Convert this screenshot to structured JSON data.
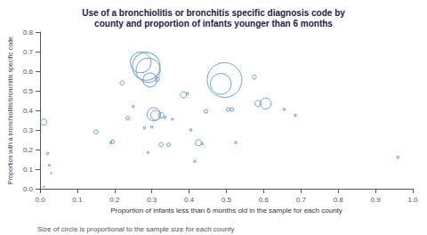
{
  "chart_data": {
    "type": "scatter",
    "title": "Use of a bronchiolitis or bronchitis specific diagnosis code by\ncounty and proportion of infants younger than 6 months",
    "xlabel": "Proportion of infants less than 6 months old in the sample for each county",
    "ylabel": "Proportion with a bronchiolitis/bronchitis specific code",
    "footnote": "Size of circle is proportional to the sample size for each county",
    "xlim": [
      0.0,
      1.0
    ],
    "ylim": [
      0.0,
      0.8
    ],
    "xticks": [
      {
        "value": 0,
        "label": "0.0"
      },
      0.1,
      0.2,
      0.3,
      0.4,
      0.5,
      0.6,
      0.7,
      0.8,
      0.9,
      {
        "value": 1,
        "label": "1.0"
      }
    ],
    "yticks": [
      {
        "value": 0,
        "label": "0.0"
      },
      0.1,
      0.2,
      0.3,
      0.4,
      0.5,
      0.6,
      0.7,
      0.8
    ],
    "color": "#5B9BD5",
    "grid": false,
    "x": [
      0.01,
      0.02,
      0.025,
      0.03,
      0.01,
      0.15,
      0.195,
      0.19,
      0.22,
      0.235,
      0.25,
      0.27,
      0.285,
      0.29,
      0.28,
      0.295,
      0.29,
      0.305,
      0.31,
      0.3,
      0.315,
      0.325,
      0.325,
      0.335,
      0.345,
      0.355,
      0.385,
      0.395,
      0.405,
      0.415,
      0.425,
      0.435,
      0.445,
      0.485,
      0.495,
      0.505,
      0.515,
      0.525,
      0.575,
      0.585,
      0.605,
      0.655,
      0.685,
      0.96
    ],
    "values": [
      0.34,
      0.18,
      0.12,
      0.08,
      0.01,
      0.29,
      0.24,
      0.235,
      0.54,
      0.36,
      0.42,
      0.645,
      0.625,
      0.605,
      0.31,
      0.555,
      0.185,
      0.38,
      0.375,
      0.315,
      0.56,
      0.375,
      0.225,
      0.365,
      0.225,
      0.355,
      0.48,
      0.485,
      0.3,
      0.14,
      0.235,
      0.23,
      0.395,
      0.535,
      0.555,
      0.405,
      0.405,
      0.235,
      0.57,
      0.435,
      0.435,
      0.405,
      0.375,
      0.16
    ],
    "sizes": [
      18,
      6,
      5,
      4,
      4,
      12,
      10,
      6,
      12,
      10,
      6,
      60,
      80,
      70,
      6,
      40,
      5,
      38,
      28,
      6,
      12,
      16,
      12,
      6,
      10,
      6,
      18,
      6,
      6,
      6,
      18,
      6,
      10,
      60,
      100,
      10,
      10,
      6,
      12,
      18,
      32,
      6,
      6,
      6
    ]
  }
}
